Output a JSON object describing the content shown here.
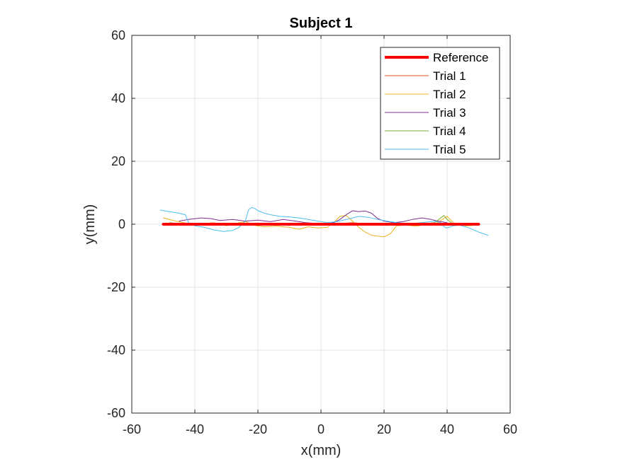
{
  "chart_data": {
    "type": "line",
    "title": "Subject 1",
    "xlabel": "x(mm)",
    "ylabel": "y(mm)",
    "xlim": [
      -60,
      60
    ],
    "ylim": [
      -60,
      60
    ],
    "xticks": [
      -60,
      -40,
      -20,
      0,
      20,
      40,
      60
    ],
    "yticks": [
      -60,
      -40,
      -20,
      0,
      20,
      40,
      60
    ],
    "xtick_labels": [
      "-60",
      "-40",
      "-20",
      "0",
      "20",
      "40",
      "60"
    ],
    "ytick_labels": [
      "-60",
      "-40",
      "-20",
      "0",
      "20",
      "40",
      "60"
    ],
    "grid": true,
    "legend_position": "top-right",
    "series": [
      {
        "name": "Reference",
        "color": "#ff0000",
        "width": 4,
        "x": [
          -50,
          50
        ],
        "y": [
          0,
          0
        ]
      },
      {
        "name": "Trial 1",
        "color": "#d95319",
        "width": 1,
        "x": [
          -50,
          -45,
          -40,
          -35,
          -30,
          -25,
          -20,
          -15,
          -10,
          -5,
          0,
          5,
          10,
          15,
          20,
          25,
          30,
          35,
          40,
          45
        ],
        "y": [
          0.0,
          0.3,
          -0.2,
          0.4,
          0.1,
          -0.3,
          0.2,
          0.0,
          -0.4,
          0.3,
          -0.2,
          0.1,
          0.5,
          0.0,
          -0.3,
          0.2,
          -0.1,
          0.4,
          0.0,
          -0.2
        ]
      },
      {
        "name": "Trial 2",
        "color": "#edb120",
        "width": 1,
        "x": [
          -50,
          -46,
          -42,
          -38,
          -34,
          -30,
          -27,
          -24,
          -21,
          -18,
          -14,
          -10,
          -7,
          -4,
          -1,
          2,
          4,
          6,
          8,
          10,
          12,
          14,
          16,
          18,
          20,
          22,
          24,
          27,
          30,
          33,
          36,
          38,
          40,
          42,
          44,
          46,
          48
        ],
        "y": [
          2.0,
          1.0,
          0.2,
          0.0,
          0.5,
          -0.5,
          0.3,
          0.8,
          -0.4,
          -0.8,
          -0.6,
          -1.0,
          -1.6,
          -0.8,
          -1.2,
          -1.0,
          0.5,
          2.5,
          2.8,
          1.0,
          -1.0,
          -2.5,
          -3.5,
          -3.8,
          -4.0,
          -3.0,
          -0.5,
          -0.3,
          -0.6,
          -0.2,
          0.0,
          1.2,
          2.5,
          0.5,
          -0.2,
          -0.5,
          -0.4
        ]
      },
      {
        "name": "Trial 3",
        "color": "#7e2f8e",
        "width": 1,
        "x": [
          -45,
          -42,
          -38,
          -35,
          -32,
          -28,
          -24,
          -20,
          -16,
          -12,
          -8,
          -5,
          -2,
          1,
          4,
          6,
          8,
          10,
          12,
          14,
          16,
          18,
          20,
          23,
          26,
          29,
          32,
          35,
          37,
          40
        ],
        "y": [
          1.0,
          1.5,
          2.0,
          1.8,
          1.2,
          1.5,
          1.0,
          1.3,
          0.8,
          1.5,
          1.0,
          0.5,
          0.3,
          0.0,
          0.5,
          1.5,
          3.0,
          4.3,
          4.0,
          4.2,
          3.5,
          1.8,
          1.0,
          0.5,
          0.8,
          1.5,
          2.0,
          1.5,
          1.0,
          0.5
        ]
      },
      {
        "name": "Trial 4",
        "color": "#77ac30",
        "width": 1,
        "x": [
          -48,
          -44,
          -40,
          -36,
          -32,
          -28,
          -24,
          -20,
          -16,
          -12,
          -8,
          -4,
          0,
          4,
          8,
          12,
          16,
          20,
          24,
          28,
          32,
          36,
          38,
          39,
          40,
          42,
          45
        ],
        "y": [
          0.5,
          0.0,
          -0.3,
          0.2,
          0.0,
          -0.2,
          0.1,
          -0.1,
          0.2,
          0.0,
          -0.2,
          0.1,
          0.0,
          0.2,
          -0.1,
          0.1,
          0.0,
          -0.2,
          0.1,
          0.0,
          -0.1,
          0.5,
          2.0,
          2.8,
          1.5,
          0.0,
          -0.5
        ]
      },
      {
        "name": "Trial 5",
        "color": "#4dbeee",
        "width": 1,
        "x": [
          -51,
          -48,
          -45,
          -43,
          -42,
          -40,
          -37,
          -34,
          -31,
          -28,
          -26,
          -24,
          -23,
          -22,
          -21,
          -20,
          -18,
          -16,
          -13,
          -10,
          -7,
          -4,
          -1,
          2,
          5,
          8,
          10,
          12,
          15,
          18,
          21,
          24,
          28,
          32,
          36,
          38,
          39,
          40,
          42,
          44,
          47,
          50,
          53
        ],
        "y": [
          4.5,
          4.0,
          3.5,
          3.0,
          0.5,
          -0.5,
          -1.0,
          -1.8,
          -2.3,
          -2.0,
          -1.0,
          1.0,
          4.5,
          5.3,
          5.0,
          4.3,
          3.5,
          3.0,
          2.5,
          2.3,
          2.0,
          1.5,
          1.0,
          0.5,
          0.8,
          1.5,
          2.0,
          2.5,
          2.2,
          1.5,
          1.0,
          0.5,
          0.2,
          0.5,
          1.0,
          0.5,
          -0.8,
          -1.2,
          -0.5,
          -0.3,
          -1.2,
          -2.5,
          -3.5
        ]
      }
    ]
  }
}
